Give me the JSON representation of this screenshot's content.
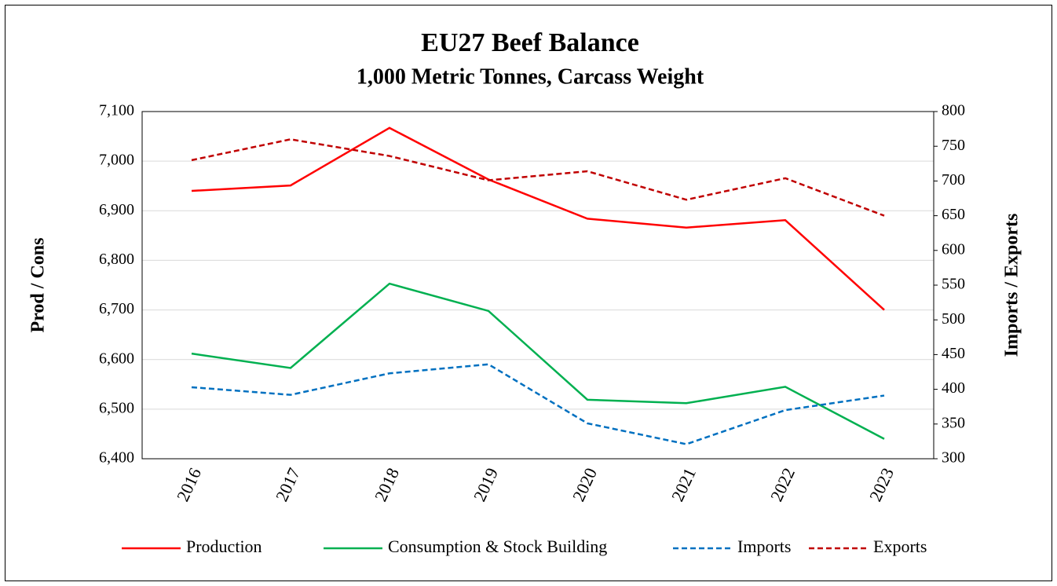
{
  "chart_data": {
    "type": "line",
    "title": "EU27 Beef Balance",
    "subtitle": "1,000 Metric Tonnes, Carcass Weight",
    "y_label": "Prod / Cons",
    "y2_label": "Imports / Exports",
    "categories": [
      "2016",
      "2017",
      "2018",
      "2019",
      "2020",
      "2021",
      "2022",
      "2023"
    ],
    "ylim": [
      6400,
      7100
    ],
    "yticks": [
      {
        "value": 6400,
        "label": "6,400"
      },
      {
        "value": 6500,
        "label": "6,500"
      },
      {
        "value": 6600,
        "label": "6,600"
      },
      {
        "value": 6700,
        "label": "6,700"
      },
      {
        "value": 6800,
        "label": "6,800"
      },
      {
        "value": 6900,
        "label": "6,900"
      },
      {
        "value": 7000,
        "label": "7,000"
      },
      {
        "value": 7100,
        "label": "7,100"
      }
    ],
    "y2lim": [
      300,
      800
    ],
    "y2ticks": [
      300,
      350,
      400,
      450,
      500,
      550,
      600,
      650,
      700,
      750,
      800
    ],
    "grid": true,
    "legend": "bottom",
    "series": [
      {
        "name": "Production",
        "color": "#ff0000",
        "dashed": false,
        "values": [
          6940,
          6951,
          7067,
          6963,
          6884,
          6866,
          6881,
          6700
        ]
      },
      {
        "name": "Consumption & Stock Building",
        "color": "#00b050",
        "dashed": false,
        "values": [
          6612,
          6583,
          6753,
          6698,
          6519,
          6512,
          6545,
          6440
        ]
      },
      {
        "name": "Imports",
        "color": "#0070c0",
        "dashed": true,
        "axis": "y2",
        "values": [
          403,
          392,
          423,
          436,
          351,
          321,
          370,
          391
        ]
      },
      {
        "name": "Exports",
        "color": "#c00000",
        "dashed": true,
        "axis": "y2",
        "values": [
          730,
          760,
          736,
          701,
          714,
          673,
          704,
          650
        ]
      }
    ]
  }
}
